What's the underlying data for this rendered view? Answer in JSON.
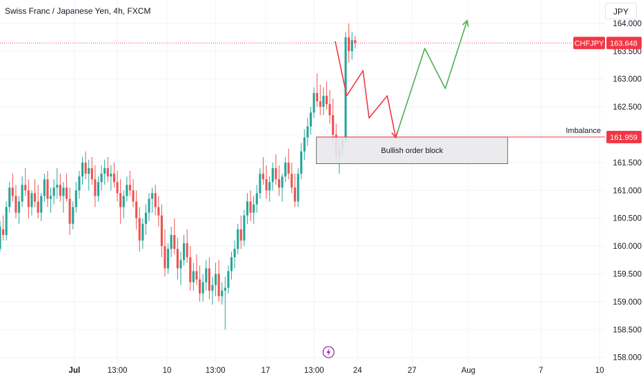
{
  "header": {
    "title": "Swiss Franc / Japanese Yen, 4h, FXCM",
    "currency_button": "JPY"
  },
  "colors": {
    "up": "#26a69a",
    "down": "#ef5350",
    "price_line": "#f23645",
    "bullish_path": "#4caf50",
    "bearish_path": "#f23645",
    "grid": "#f0f3fa",
    "event_icon": "#9c27b0"
  },
  "event_icon": "lightning-icon",
  "chart_data": {
    "type": "candlestick",
    "symbol": "CHFJPY",
    "timeframe": "4h",
    "y_ticks": [
      158.0,
      158.5,
      159.0,
      159.5,
      160.0,
      160.5,
      161.0,
      161.5,
      162.0,
      162.5,
      163.0,
      163.5,
      164.0
    ],
    "y_tick_labels": [
      "158.000",
      "158.500",
      "159.000",
      "159.500",
      "160.000",
      "160.500",
      "161.000",
      "161.500",
      "162.000",
      "162.500",
      "163.000",
      "163.500",
      "164.000"
    ],
    "ylim": [
      157.86,
      164.42
    ],
    "x_range": [
      0,
      100
    ],
    "x_ticks": [
      {
        "x": 12.3,
        "label": "Jul",
        "bold": true
      },
      {
        "x": 19.4,
        "label": "13:00"
      },
      {
        "x": 27.6,
        "label": "10"
      },
      {
        "x": 35.6,
        "label": "13:00"
      },
      {
        "x": 43.9,
        "label": "17"
      },
      {
        "x": 51.9,
        "label": "13:00"
      },
      {
        "x": 59.1,
        "label": "24"
      },
      {
        "x": 68.1,
        "label": "27"
      },
      {
        "x": 77.4,
        "label": "Aug"
      },
      {
        "x": 89.4,
        "label": "7"
      },
      {
        "x": 99.1,
        "label": "10"
      }
    ],
    "candles": [
      [
        159.95,
        160.45,
        159.9,
        160.35
      ],
      [
        160.3,
        160.55,
        160.1,
        160.2
      ],
      [
        160.2,
        160.8,
        160.1,
        160.7
      ],
      [
        160.7,
        161.15,
        160.6,
        161.05
      ],
      [
        161.05,
        161.3,
        160.8,
        160.9
      ],
      [
        160.9,
        161.1,
        160.5,
        160.6
      ],
      [
        160.6,
        160.9,
        160.4,
        160.8
      ],
      [
        160.8,
        161.25,
        160.7,
        161.1
      ],
      [
        161.1,
        161.4,
        160.9,
        161.0
      ],
      [
        161.0,
        161.2,
        160.5,
        160.7
      ],
      [
        160.7,
        161.0,
        160.55,
        160.95
      ],
      [
        160.95,
        161.2,
        160.7,
        160.8
      ],
      [
        160.8,
        161.1,
        160.5,
        160.6
      ],
      [
        160.6,
        160.95,
        160.45,
        160.9
      ],
      [
        160.9,
        161.3,
        160.8,
        161.2
      ],
      [
        161.2,
        161.35,
        160.7,
        160.85
      ],
      [
        160.85,
        161.05,
        160.6,
        160.9
      ],
      [
        160.9,
        161.2,
        160.75,
        161.05
      ],
      [
        161.05,
        161.4,
        160.85,
        161.1
      ],
      [
        161.1,
        161.3,
        160.8,
        160.9
      ],
      [
        160.9,
        161.15,
        160.6,
        161.05
      ],
      [
        161.05,
        161.3,
        160.8,
        160.85
      ],
      [
        160.85,
        161.05,
        160.2,
        160.4
      ],
      [
        160.4,
        160.8,
        160.3,
        160.7
      ],
      [
        160.7,
        161.15,
        160.6,
        161.0
      ],
      [
        161.0,
        161.35,
        160.85,
        161.25
      ],
      [
        161.25,
        161.6,
        161.1,
        161.5
      ],
      [
        161.5,
        161.7,
        161.2,
        161.3
      ],
      [
        161.3,
        161.55,
        161.0,
        161.4
      ],
      [
        161.4,
        161.6,
        161.1,
        161.2
      ],
      [
        161.2,
        161.45,
        160.7,
        160.9
      ],
      [
        160.9,
        161.25,
        160.8,
        161.15
      ],
      [
        161.15,
        161.45,
        161.0,
        161.3
      ],
      [
        161.3,
        161.55,
        161.1,
        161.4
      ],
      [
        161.4,
        161.6,
        161.15,
        161.25
      ],
      [
        161.25,
        161.45,
        161.0,
        161.3
      ],
      [
        161.3,
        161.5,
        161.05,
        161.15
      ],
      [
        161.15,
        161.35,
        160.8,
        160.95
      ],
      [
        160.95,
        161.2,
        160.4,
        160.7
      ],
      [
        160.7,
        161.0,
        160.5,
        160.9
      ],
      [
        160.9,
        161.25,
        160.8,
        161.1
      ],
      [
        161.1,
        161.35,
        160.9,
        161.0
      ],
      [
        161.0,
        161.2,
        160.7,
        160.8
      ],
      [
        160.8,
        161.0,
        160.3,
        160.5
      ],
      [
        160.5,
        160.7,
        159.9,
        160.1
      ],
      [
        160.1,
        160.5,
        159.95,
        160.4
      ],
      [
        160.4,
        160.75,
        160.2,
        160.6
      ],
      [
        160.6,
        160.95,
        160.45,
        160.85
      ],
      [
        160.85,
        161.05,
        160.6,
        160.95
      ],
      [
        160.95,
        161.1,
        160.55,
        160.7
      ],
      [
        160.7,
        160.9,
        160.35,
        160.55
      ],
      [
        160.55,
        160.75,
        159.8,
        160.0
      ],
      [
        160.0,
        160.3,
        159.45,
        159.6
      ],
      [
        159.6,
        160.05,
        159.5,
        159.95
      ],
      [
        159.95,
        160.35,
        159.8,
        160.2
      ],
      [
        160.2,
        160.5,
        159.85,
        159.95
      ],
      [
        159.95,
        160.15,
        159.4,
        159.6
      ],
      [
        159.6,
        159.9,
        159.3,
        159.75
      ],
      [
        159.75,
        160.2,
        159.65,
        160.05
      ],
      [
        160.05,
        160.3,
        159.7,
        159.8
      ],
      [
        159.8,
        160.0,
        159.2,
        159.35
      ],
      [
        159.35,
        159.7,
        159.2,
        159.55
      ],
      [
        159.55,
        159.85,
        159.3,
        159.4
      ],
      [
        159.4,
        159.65,
        159.0,
        159.15
      ],
      [
        159.15,
        159.5,
        159.0,
        159.35
      ],
      [
        159.35,
        159.75,
        159.2,
        159.6
      ],
      [
        159.6,
        159.8,
        159.05,
        159.2
      ],
      [
        159.2,
        159.45,
        158.95,
        159.3
      ],
      [
        159.3,
        159.7,
        159.1,
        159.5
      ],
      [
        159.5,
        159.75,
        159.0,
        159.1
      ],
      [
        159.1,
        159.35,
        158.95,
        159.2
      ],
      [
        159.2,
        159.45,
        158.5,
        159.25
      ],
      [
        159.25,
        159.65,
        159.15,
        159.55
      ],
      [
        159.55,
        159.9,
        159.4,
        159.8
      ],
      [
        159.8,
        160.1,
        159.6,
        159.95
      ],
      [
        159.95,
        160.4,
        159.85,
        160.3
      ],
      [
        160.3,
        160.55,
        159.95,
        160.1
      ],
      [
        160.1,
        160.65,
        160.0,
        160.55
      ],
      [
        160.55,
        160.95,
        160.4,
        160.8
      ],
      [
        160.8,
        161.0,
        160.45,
        160.6
      ],
      [
        160.6,
        160.9,
        160.4,
        160.75
      ],
      [
        160.75,
        161.1,
        160.6,
        160.95
      ],
      [
        160.95,
        161.4,
        160.85,
        161.3
      ],
      [
        161.3,
        161.6,
        161.1,
        161.2
      ],
      [
        161.2,
        161.45,
        160.85,
        161.0
      ],
      [
        161.0,
        161.25,
        160.8,
        161.15
      ],
      [
        161.15,
        161.5,
        161.0,
        161.4
      ],
      [
        161.4,
        161.65,
        161.1,
        161.2
      ],
      [
        161.2,
        161.45,
        160.9,
        161.05
      ],
      [
        161.05,
        161.3,
        160.8,
        161.25
      ],
      [
        161.25,
        161.6,
        161.15,
        161.5
      ],
      [
        161.5,
        161.75,
        161.2,
        161.3
      ],
      [
        161.3,
        161.5,
        160.95,
        161.05
      ],
      [
        161.05,
        161.3,
        160.7,
        160.8
      ],
      [
        160.8,
        161.4,
        160.7,
        161.3
      ],
      [
        161.3,
        161.85,
        161.2,
        161.7
      ],
      [
        161.7,
        162.1,
        161.55,
        161.95
      ],
      [
        161.95,
        162.3,
        161.8,
        162.15
      ],
      [
        162.15,
        162.5,
        162.0,
        162.4
      ],
      [
        162.4,
        162.85,
        162.3,
        162.75
      ],
      [
        162.75,
        163.1,
        162.5,
        162.6
      ],
      [
        162.6,
        162.9,
        162.35,
        162.5
      ],
      [
        162.5,
        162.85,
        162.35,
        162.7
      ],
      [
        162.7,
        162.95,
        162.45,
        162.55
      ],
      [
        162.55,
        162.8,
        162.2,
        162.35
      ],
      [
        162.35,
        162.65,
        161.85,
        162.0
      ],
      [
        162.0,
        162.2,
        161.5,
        161.6
      ],
      [
        161.6,
        161.9,
        161.3,
        161.75
      ],
      [
        161.75,
        161.95,
        161.6,
        161.9
      ],
      [
        161.9,
        163.85,
        161.85,
        163.75
      ],
      [
        163.75,
        164.0,
        163.3,
        163.5
      ],
      [
        163.5,
        163.85,
        163.35,
        163.7
      ],
      [
        163.7,
        163.78,
        163.55,
        163.65
      ]
    ],
    "current_price": 163.648,
    "current_price_label": "163.648",
    "symbol_label": "CHFJPY",
    "imbalance_level": 161.959,
    "imbalance_price_label": "161.959",
    "imbalance_label": "Imbalance",
    "order_block": {
      "x1": 52.3,
      "x2": 83.9,
      "y_top": 161.959,
      "y_bottom": 161.48,
      "label": "Bullish order block"
    },
    "bearish_path": [
      [
        55.4,
        163.68
      ],
      [
        57.3,
        162.7
      ],
      [
        60.0,
        163.15
      ],
      [
        61.0,
        162.3
      ],
      [
        64.0,
        162.7
      ],
      [
        65.4,
        161.95
      ]
    ],
    "bullish_path": [
      [
        65.4,
        161.95
      ],
      [
        70.2,
        163.55
      ],
      [
        73.6,
        162.83
      ],
      [
        77.2,
        164.05
      ]
    ],
    "event_x": 54.3
  }
}
